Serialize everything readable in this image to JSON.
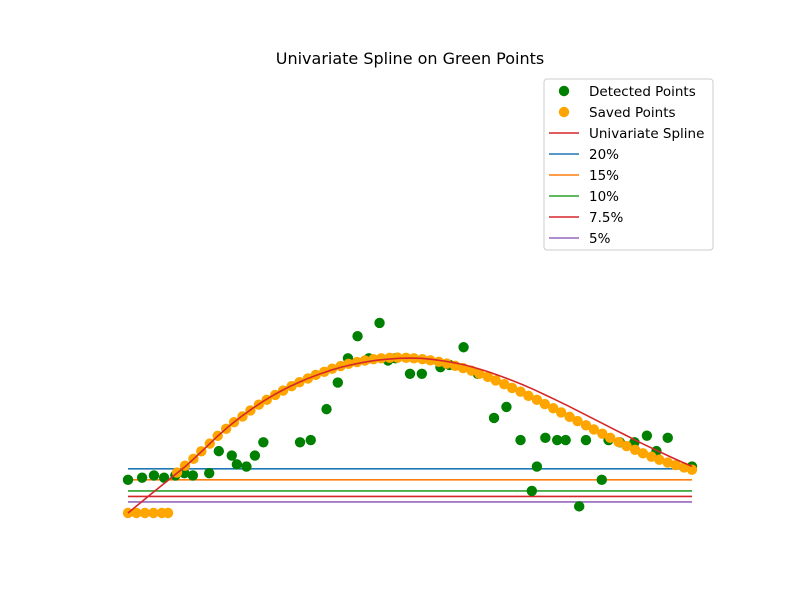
{
  "chart_data": {
    "type": "scatter",
    "title": "Univariate Spline on Green Points",
    "xlabel": "",
    "ylabel": "",
    "xlim": [
      0,
      100
    ],
    "ylim": [
      0,
      100
    ],
    "axes_visible": false,
    "grid": false,
    "legend_position": "top-right",
    "series": [
      {
        "name": "Detected Points",
        "kind": "scatter",
        "color": "#008000",
        "points": [
          [
            0,
            15
          ],
          [
            2.5,
            16
          ],
          [
            4.6,
            17
          ],
          [
            6.4,
            16
          ],
          [
            8.4,
            17
          ],
          [
            10,
            18
          ],
          [
            11.5,
            17
          ],
          [
            14.4,
            18
          ],
          [
            16.1,
            28
          ],
          [
            18.4,
            26
          ],
          [
            19.3,
            22
          ],
          [
            21.0,
            21
          ],
          [
            22.5,
            26
          ],
          [
            24.0,
            32
          ],
          [
            30.5,
            32
          ],
          [
            32.4,
            33
          ],
          [
            35.2,
            47
          ],
          [
            37.2,
            59
          ],
          [
            39.0,
            70
          ],
          [
            40.7,
            80
          ],
          [
            42.7,
            70
          ],
          [
            44.6,
            86
          ],
          [
            46.1,
            69
          ],
          [
            47.4,
            70
          ],
          [
            50.0,
            63
          ],
          [
            52.1,
            63
          ],
          [
            55.4,
            66
          ],
          [
            57.0,
            67
          ],
          [
            59.5,
            75
          ],
          [
            62.0,
            63
          ],
          [
            64.9,
            43
          ],
          [
            67.1,
            48
          ],
          [
            69.6,
            33
          ],
          [
            71.6,
            10
          ],
          [
            72.5,
            21
          ],
          [
            74.0,
            34
          ],
          [
            76.1,
            33
          ],
          [
            77.6,
            33
          ],
          [
            80.0,
            3
          ],
          [
            81.2,
            33
          ],
          [
            84.0,
            15
          ],
          [
            85.2,
            33
          ],
          [
            87.2,
            32
          ],
          [
            89.8,
            32
          ],
          [
            92.0,
            35
          ],
          [
            93.7,
            28
          ],
          [
            95.7,
            34
          ],
          [
            100,
            21
          ]
        ]
      },
      {
        "name": "Saved Points",
        "kind": "scatter",
        "color": "#ffa500",
        "points": [
          [
            0,
            0
          ],
          [
            1.5,
            0
          ],
          [
            3.0,
            0
          ],
          [
            4.5,
            0
          ],
          [
            6.0,
            0
          ],
          [
            7.1,
            0
          ],
          [
            8.7,
            18.3
          ],
          [
            10.1,
            21.4
          ],
          [
            11.6,
            24.5
          ],
          [
            13.0,
            27.9
          ],
          [
            14.5,
            31.4
          ],
          [
            15.9,
            34.9
          ],
          [
            17.4,
            38.1
          ],
          [
            18.8,
            41.1
          ],
          [
            20.3,
            43.7
          ],
          [
            21.7,
            46.4
          ],
          [
            23.2,
            49.0
          ],
          [
            24.6,
            51.2
          ],
          [
            26.1,
            53.4
          ],
          [
            27.5,
            55.4
          ],
          [
            29.0,
            57.4
          ],
          [
            30.4,
            59.2
          ],
          [
            31.9,
            60.9
          ],
          [
            33.3,
            62.5
          ],
          [
            34.8,
            63.9
          ],
          [
            36.2,
            65.3
          ],
          [
            37.7,
            66.5
          ],
          [
            39.1,
            67.5
          ],
          [
            40.6,
            68.3
          ],
          [
            42.0,
            69.0
          ],
          [
            43.5,
            69.6
          ],
          [
            44.9,
            70.0
          ],
          [
            46.4,
            70.2
          ],
          [
            47.8,
            70.3
          ],
          [
            49.3,
            70.2
          ],
          [
            50.7,
            70.0
          ],
          [
            52.2,
            69.6
          ],
          [
            53.6,
            69.1
          ],
          [
            55.1,
            68.4
          ],
          [
            56.5,
            67.6
          ],
          [
            58.0,
            66.6
          ],
          [
            59.4,
            65.6
          ],
          [
            60.9,
            64.4
          ],
          [
            62.3,
            63.0
          ],
          [
            63.8,
            61.6
          ],
          [
            65.2,
            60.0
          ],
          [
            66.7,
            58.3
          ],
          [
            68.1,
            56.6
          ],
          [
            69.6,
            54.9
          ],
          [
            71.0,
            53.0
          ],
          [
            72.5,
            51.2
          ],
          [
            73.9,
            49.3
          ],
          [
            75.4,
            47.4
          ],
          [
            76.8,
            45.5
          ],
          [
            78.3,
            43.5
          ],
          [
            79.7,
            41.6
          ],
          [
            81.2,
            39.7
          ],
          [
            82.6,
            37.8
          ],
          [
            84.1,
            35.9
          ],
          [
            85.5,
            34.0
          ],
          [
            87.0,
            32.1
          ],
          [
            88.4,
            30.3
          ],
          [
            89.9,
            28.6
          ],
          [
            91.3,
            27.0
          ],
          [
            92.8,
            25.5
          ],
          [
            94.2,
            24.1
          ],
          [
            95.7,
            22.8
          ],
          [
            97.1,
            21.7
          ],
          [
            98.6,
            20.6
          ],
          [
            100,
            19.6
          ]
        ]
      },
      {
        "name": "Univariate Spline",
        "kind": "line",
        "color": "#d62728",
        "points": [
          [
            0,
            0
          ],
          [
            2,
            4.2
          ],
          [
            4,
            8.4
          ],
          [
            6,
            12.5
          ],
          [
            8,
            16.6
          ],
          [
            10,
            20.7
          ],
          [
            12,
            25.3
          ],
          [
            14,
            30.2
          ],
          [
            16,
            35.0
          ],
          [
            18,
            39.5
          ],
          [
            20,
            43.5
          ],
          [
            22,
            47.2
          ],
          [
            24,
            50.6
          ],
          [
            26,
            53.6
          ],
          [
            28,
            56.4
          ],
          [
            30,
            58.8
          ],
          [
            32,
            61.0
          ],
          [
            34,
            62.9
          ],
          [
            36,
            64.6
          ],
          [
            38,
            66.1
          ],
          [
            40,
            67.3
          ],
          [
            42,
            68.3
          ],
          [
            44,
            69.1
          ],
          [
            46,
            69.6
          ],
          [
            48,
            70.0
          ],
          [
            50,
            70.1
          ],
          [
            52,
            70.0
          ],
          [
            54,
            69.5
          ],
          [
            56,
            68.8
          ],
          [
            58,
            67.9
          ],
          [
            60,
            66.8
          ],
          [
            62,
            65.4
          ],
          [
            64,
            63.8
          ],
          [
            66,
            62.0
          ],
          [
            68,
            60.1
          ],
          [
            70,
            58.0
          ],
          [
            72,
            55.8
          ],
          [
            74,
            53.4
          ],
          [
            76,
            51.0
          ],
          [
            78,
            48.5
          ],
          [
            80,
            45.9
          ],
          [
            82,
            43.3
          ],
          [
            84,
            40.7
          ],
          [
            86,
            38.1
          ],
          [
            88,
            35.5
          ],
          [
            90,
            32.9
          ],
          [
            92,
            30.4
          ],
          [
            94,
            28.0
          ],
          [
            96,
            25.6
          ],
          [
            98,
            23.3
          ],
          [
            100,
            21.1
          ]
        ]
      },
      {
        "name": "20%",
        "kind": "hline",
        "color": "#1f77b4",
        "y": 20
      },
      {
        "name": "15%",
        "kind": "hline",
        "color": "#ff7f0e",
        "y": 15
      },
      {
        "name": "10%",
        "kind": "hline",
        "color": "#2ca02c",
        "y": 10
      },
      {
        "name": "7.5%",
        "kind": "hline",
        "color": "#d62728",
        "y": 7.5
      },
      {
        "name": "5%",
        "kind": "hline",
        "color": "#9467bd",
        "y": 5
      }
    ]
  }
}
